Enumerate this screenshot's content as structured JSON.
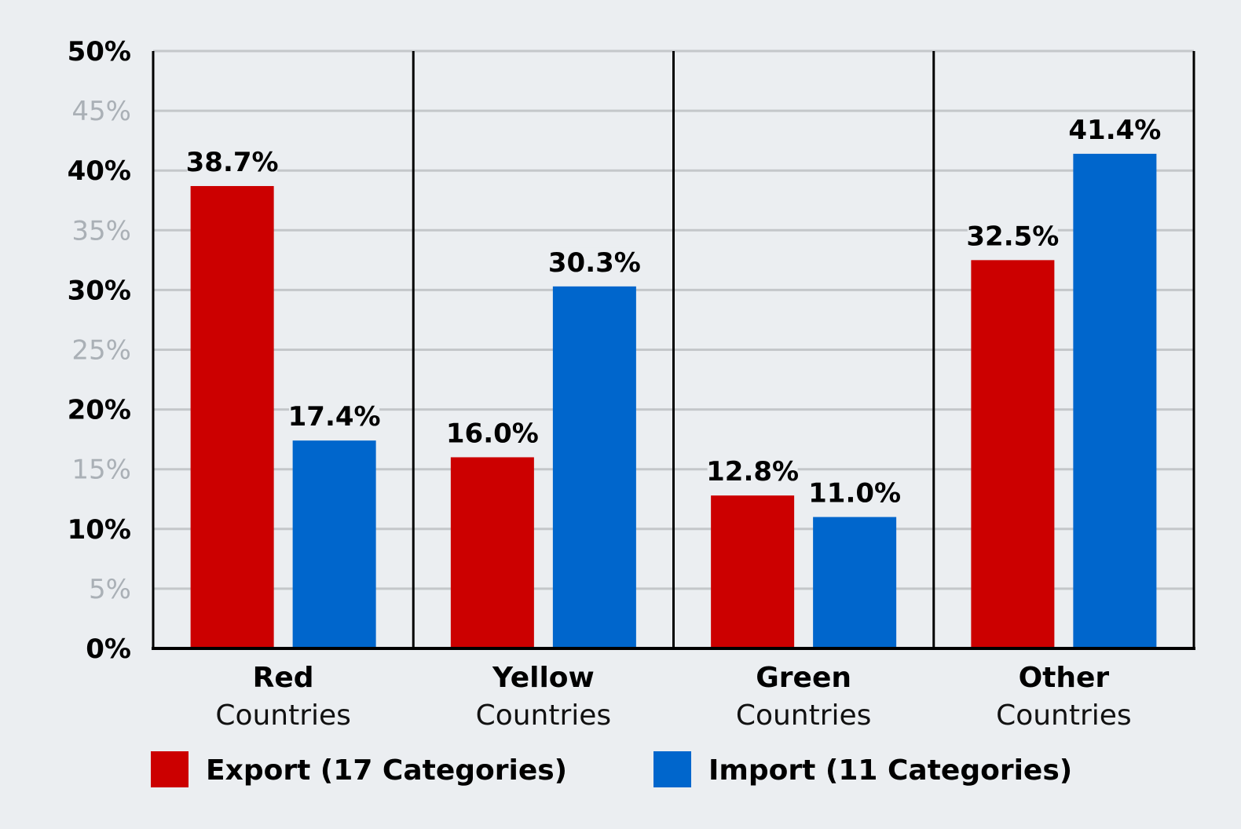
{
  "colors": {
    "export": "#cc0000",
    "import": "#0066cc",
    "background": "#ebeef1",
    "gridline": "#c4c7ca",
    "axis": "#000000"
  },
  "chart_data": {
    "type": "bar",
    "categories": [
      {
        "main": "Red",
        "sub": "Countries"
      },
      {
        "main": "Yellow",
        "sub": "Countries"
      },
      {
        "main": "Green",
        "sub": "Countries"
      },
      {
        "main": "Other",
        "sub": "Countries"
      }
    ],
    "series": [
      {
        "name": "Export (17 Categories)",
        "color_key": "export",
        "values": [
          38.7,
          16.0,
          12.8,
          32.5
        ],
        "labels": [
          "38.7%",
          "16.0%",
          "12.8%",
          "32.5%"
        ]
      },
      {
        "name": "Import (11 Categories)",
        "color_key": "import",
        "values": [
          17.4,
          30.3,
          11.0,
          41.4
        ],
        "labels": [
          "17.4%",
          "30.3%",
          "11.0%",
          "41.4%"
        ]
      }
    ],
    "ylim": [
      0,
      50
    ],
    "y_ticks": [
      {
        "value": 0,
        "label": "0%",
        "major": true
      },
      {
        "value": 5,
        "label": "5%",
        "major": false
      },
      {
        "value": 10,
        "label": "10%",
        "major": true
      },
      {
        "value": 15,
        "label": "15%",
        "major": false
      },
      {
        "value": 20,
        "label": "20%",
        "major": true
      },
      {
        "value": 25,
        "label": "25%",
        "major": false
      },
      {
        "value": 30,
        "label": "30%",
        "major": true
      },
      {
        "value": 35,
        "label": "35%",
        "major": false
      },
      {
        "value": 40,
        "label": "40%",
        "major": true
      },
      {
        "value": 45,
        "label": "45%",
        "major": false
      },
      {
        "value": 50,
        "label": "50%",
        "major": true
      }
    ],
    "grid": true,
    "legend_position": "bottom"
  }
}
